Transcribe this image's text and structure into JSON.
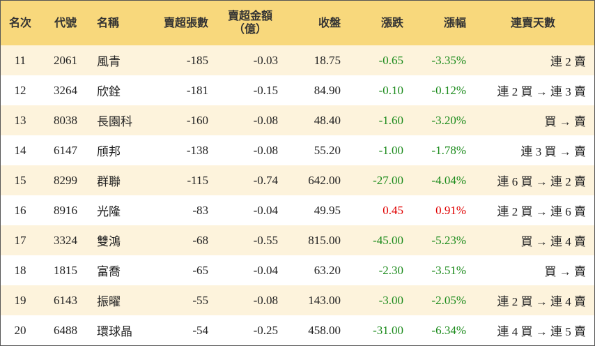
{
  "table": {
    "columns": [
      "名次",
      "代號",
      "名稱",
      "賣超張數",
      "賣超金額\n（億）",
      "收盤",
      "漲跌",
      "漲幅",
      "連賣天數"
    ],
    "rows": [
      [
        "11",
        "2061",
        "風青",
        "-185",
        "-0.03",
        "18.75",
        "-0.65",
        "-3.35%",
        "連 2 賣"
      ],
      [
        "12",
        "3264",
        "欣銓",
        "-181",
        "-0.15",
        "84.90",
        "-0.10",
        "-0.12%",
        "連 2 買 → 連 3 賣"
      ],
      [
        "13",
        "8038",
        "長園科",
        "-160",
        "-0.08",
        "48.40",
        "-1.60",
        "-3.20%",
        "買 → 賣"
      ],
      [
        "14",
        "6147",
        "頎邦",
        "-138",
        "-0.08",
        "55.20",
        "-1.00",
        "-1.78%",
        "連 3 買 → 賣"
      ],
      [
        "15",
        "8299",
        "群聯",
        "-115",
        "-0.74",
        "642.00",
        "-27.00",
        "-4.04%",
        "連 6 買 → 連 2 賣"
      ],
      [
        "16",
        "8916",
        "光隆",
        "-83",
        "-0.04",
        "49.95",
        "0.45",
        "0.91%",
        "連 2 買 → 連 6 賣"
      ],
      [
        "17",
        "3324",
        "雙鴻",
        "-68",
        "-0.55",
        "815.00",
        "-45.00",
        "-5.23%",
        "買 → 連 4 賣"
      ],
      [
        "18",
        "1815",
        "富喬",
        "-65",
        "-0.04",
        "63.20",
        "-2.30",
        "-3.51%",
        "買 → 賣"
      ],
      [
        "19",
        "6143",
        "振曜",
        "-55",
        "-0.08",
        "143.00",
        "-3.00",
        "-2.05%",
        "連 2 買 → 連 4 賣"
      ],
      [
        "20",
        "6488",
        "環球晶",
        "-54",
        "-0.25",
        "458.00",
        "-31.00",
        "-6.34%",
        "連 4 買 → 連 5 賣"
      ]
    ]
  }
}
